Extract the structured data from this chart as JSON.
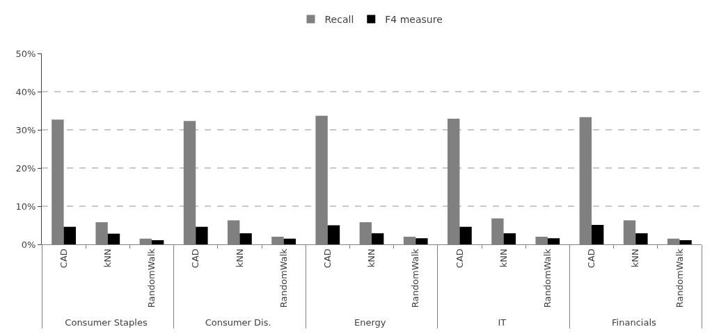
{
  "chart_data": {
    "type": "bar",
    "categories": [
      "CAD",
      "kNN",
      "RandomWalk",
      "CAD",
      "kNN",
      "RandomWalk",
      "CAD",
      "kNN",
      "RandomWalk",
      "CAD",
      "kNN",
      "RandomWalk",
      "CAD",
      "kNN",
      "RandomWalk"
    ],
    "annotations": [
      "Consumer Staples",
      "Consumer Dis.",
      "Energy",
      "IT",
      "Financials"
    ],
    "series": [
      {
        "name": "Recall",
        "color": "#808080",
        "values": [
          32.7,
          5.8,
          1.5,
          32.3,
          6.3,
          2.0,
          33.7,
          5.8,
          2.0,
          32.9,
          6.8,
          2.0,
          33.3,
          6.3,
          1.5
        ]
      },
      {
        "name": "F4 measure",
        "color": "#000000",
        "values": [
          4.6,
          2.8,
          1.1,
          4.6,
          2.9,
          1.5,
          5.0,
          2.9,
          1.6,
          4.6,
          2.9,
          1.6,
          5.1,
          2.9,
          1.1
        ]
      }
    ],
    "ylim": [
      0,
      50
    ],
    "yticks": [
      {
        "value": 0,
        "label": "0%"
      },
      {
        "value": 10,
        "label": "10%"
      },
      {
        "value": 20,
        "label": "20%"
      },
      {
        "value": 30,
        "label": "30%"
      },
      {
        "value": 40,
        "label": "40%"
      },
      {
        "value": 50,
        "label": "50%"
      }
    ],
    "grid": "y",
    "legend": "top"
  }
}
